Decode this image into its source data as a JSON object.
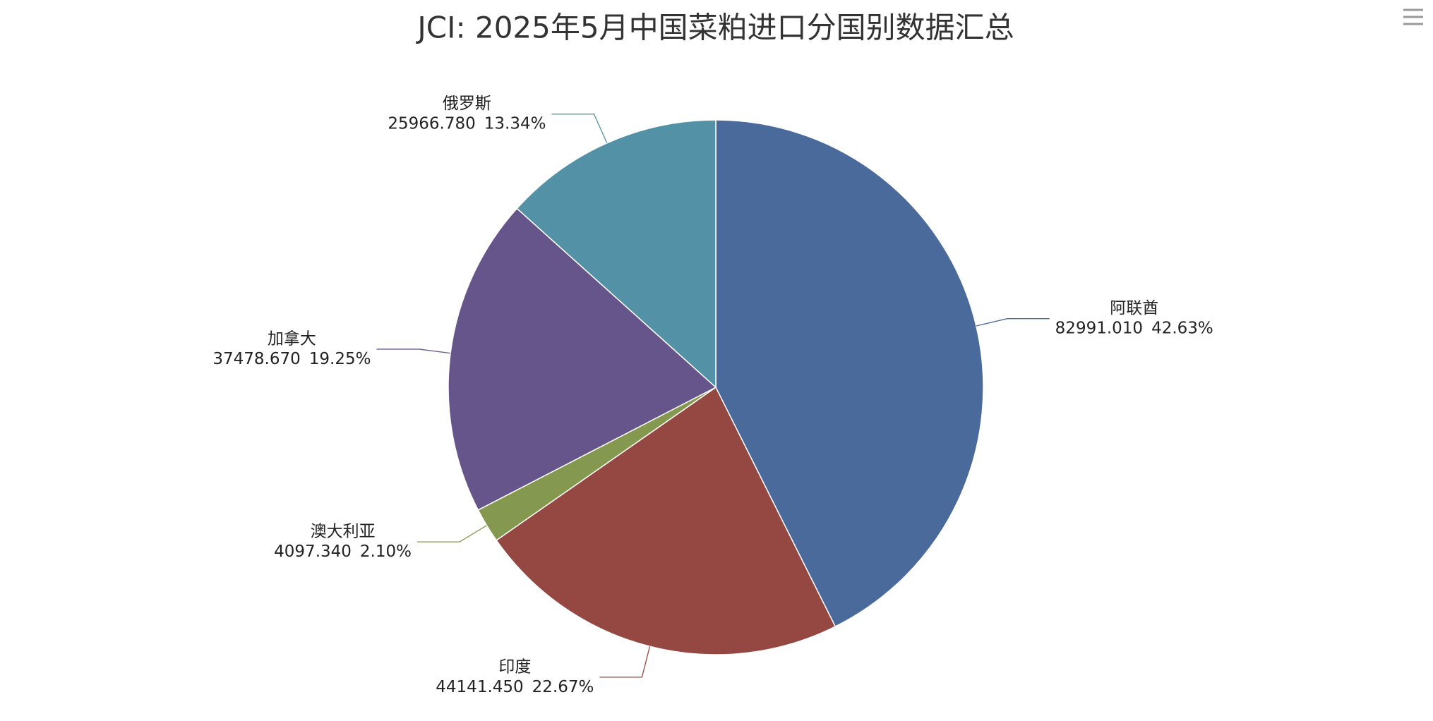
{
  "chart_data": {
    "type": "pie",
    "title": "JCI: 2025年5月中国菜粕进口分国别数据汇总",
    "categories": [
      "阿联酋",
      "印度",
      "澳大利亚",
      "加拿大",
      "俄罗斯"
    ],
    "values": [
      82991.01,
      44141.45,
      4097.34,
      37478.67,
      25966.78
    ],
    "value_labels": [
      "82991.010",
      "44141.450",
      "4097.340",
      "37478.670",
      "25966.780"
    ],
    "percent_labels": [
      "42.63%",
      "22.67%",
      "2.10%",
      "19.25%",
      "13.34%"
    ],
    "colors": [
      "#4a6a9c",
      "#954842",
      "#84994f",
      "#66558a",
      "#5291a6"
    ]
  }
}
